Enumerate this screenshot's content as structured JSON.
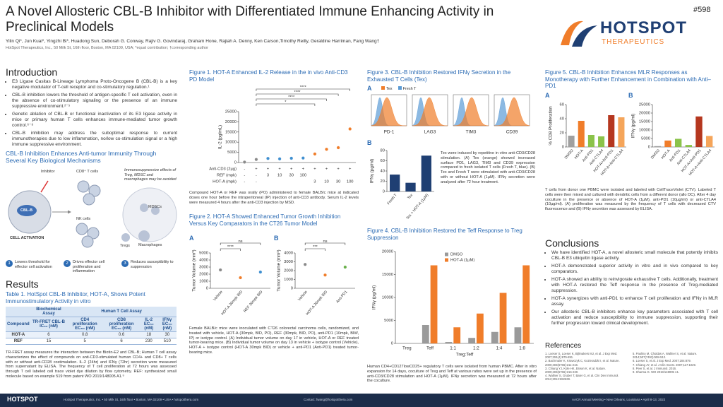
{
  "header": {
    "title": "A Novel Allosteric CBL-B Inhibitor with Differentiated Immune Enhancing Activity in Preclinical Models",
    "authors": "Yilin Qi*, Jun Kuai*, Yingzhi Bi*, Huadong Sun, Deborah G. Conway, Rajiv G. Govindaraj, Graham Hone, Rajiah A. Denny, Ken Carson,Timothy Reilly, Geraldine Harriman, Fang Wang†",
    "affiliation": "HotSpot Therapeutics, Inc., 50 Milk St, 16th floor, Boston, MA 02109, USA; *equal contribution; †corresponding author",
    "poster_number": "#598",
    "logo": {
      "name": "HOTSPOT",
      "sub": "THERAPEUTICS"
    }
  },
  "introduction": {
    "heading": "Introduction",
    "bullets": [
      "E3 Ligase Casitas B-Lineage Lymphoma Proto-Oncogene B (CBL-B) is a key negative modulator of T-cell receptor and co-stimulatory regulation.¹",
      "CBL-B inhibition lowers the threshold of antigen-specific T cell activation, even in the absence of co-stimulatory signaling or the presence of an immune suppressive environment.²⁻⁵",
      "Genetic ablation of CBL-B or functional inactivation of its E3 ligase activity in mice or primary human T cells enhances immune-mediated tumor growth control.⁶⁻⁸",
      "CBL-B inhibition may address the suboptimal response to current immunotherapies due to low inflammation, no/low co-stimulation signal or a high immune suppressive environment."
    ]
  },
  "mechanisms": {
    "heading": "CBL-B Inhibition Enhances Anti-tumor Immunity Through Several Key Biological Mechanisms",
    "labels": [
      "Inhibitor",
      "CD8⁺ T cells",
      "NK cells",
      "Immunosuppressive effects of Treg, MDSC and macrophages may be avoided",
      "MDSCs",
      "Macrophages",
      "Tregs",
      "CBL-B",
      "CELL ACTIVATION"
    ],
    "steps": [
      {
        "number": 1,
        "text": "Lowers threshold for effector cell activation"
      },
      {
        "number": 2,
        "text": "Drives effector cell proliferation and inflammation"
      },
      {
        "number": 3,
        "text": "Reduces susceptibility to suppression"
      }
    ]
  },
  "results": {
    "heading": "Results"
  },
  "table1": {
    "title": "Table 1. HotSpot CBL-B Inhibitor, HOT-A, Shows Potent Immunostimulatory Activity in vitro",
    "group_headers": [
      "Biochemical Assay",
      "Human T Cell Assay"
    ],
    "columns": [
      "Compound",
      "TR-FRET CBL-B IC₅₀ (nM)",
      "CD4 proliferation EC₅₀ (nM)",
      "CD8 proliferation EC₅₀ (nM)",
      "IL-2 EC₅₀ (nM)",
      "IFNγ EC₅₀ (nM)"
    ],
    "rows": [
      [
        "HOT-A",
        6,
        0.8,
        0.6,
        18,
        30
      ],
      [
        "REF",
        15,
        5,
        6,
        230,
        510
      ]
    ],
    "footnote": "TR-FRET assay measures the interaction between the Biotin-E2 and CBL-B; Human T cell assay characterizes the effect of compounds on anti-CD3-stimulated human CD4+ and CD8+ T cells with or without anti-CD28 costimulation. IL-2 (24hr) and IFNγ (72hr) secretion were measured from supernatant by ELISA. The frequency of T cell proliferation at 72 hours was assessed through T cell labeled cell trace violet dye dilution by flow cytometry. REF: synthesized small molecule based on example 519 from patent WO 2019/148005 A1.⁹"
  },
  "fig1": {
    "title": "Figure 1. HOT-A Enhanced IL-2 Release in the in vivo Anti-CD3 PD Model",
    "chart": {
      "type": "dot",
      "ylabel": "IL-2 (pg/mL)",
      "ylim": [
        0,
        25000
      ],
      "yticks": [
        0,
        5000,
        10000,
        15000,
        20000,
        25000
      ],
      "values": [
        200,
        1500,
        2000,
        1800,
        2100,
        2200,
        4200,
        6500,
        7300,
        16500
      ],
      "colors": [
        "#8a8a8a",
        "#8a8a8a",
        "#3f8fd0",
        "#3f8fd0",
        "#3f8fd0",
        "#3f8fd0",
        "#f07d2a",
        "#f07d2a",
        "#f07d2a",
        "#f07d2a"
      ],
      "significance": [
        "****",
        "****",
        "****",
        "*"
      ],
      "row_labels": [
        "Anti-CD3 (2µg)",
        "REF (mpk)",
        "HOT-A (mpk)"
      ],
      "rows": [
        [
          "-",
          "+",
          "+",
          "+",
          "+",
          "+",
          "+",
          "+",
          "+",
          "+"
        ],
        [
          "-",
          "-",
          "3",
          "10",
          "30",
          "100",
          null,
          null,
          null,
          null
        ],
        [
          "-",
          "-",
          null,
          null,
          null,
          null,
          "3",
          "10",
          "30",
          "100"
        ]
      ]
    },
    "caption": "Compound HOT-A or REF was orally (PO) administered to female BALB/c mice at indicated doses one hour before the intraperitoneal (IP) injection of anti-CD3 antibody. Serum IL-2 levels were measured 4 hours after the anti-CD3 injection by MSD."
  },
  "fig2": {
    "title": "Figure 2. HOT-A Showed Enhanced Tumor Growth Inhibition Versus Key Comparators in the CT26 Tumor Model",
    "panels": [
      "A",
      "B"
    ],
    "charts": [
      {
        "type": "dot",
        "ylabel": "Tumor Volume (mm³)",
        "ylim": [
          0,
          5000
        ],
        "yticks": [
          0,
          1000,
          2000,
          3000,
          4000,
          5000
        ],
        "categories": [
          "Vehicle",
          "HOT-A 30mpk BID",
          "REF 30mpk BID"
        ],
        "values": [
          2600,
          1500,
          2300
        ],
        "colors": [
          "#8a8a8a",
          "#f07d2a",
          "#3f8fd0"
        ],
        "significance": [
          "****",
          "ns"
        ]
      },
      {
        "type": "dot",
        "ylabel": "Tumor Volume (mm³)",
        "ylim": [
          0,
          4000
        ],
        "yticks": [
          0,
          1000,
          2000,
          3000,
          4000
        ],
        "categories": [
          "Vehicle",
          "HOT-A 30mpk BID",
          "Anti-PD1"
        ],
        "values": [
          2700,
          1500,
          2400
        ],
        "colors": [
          "#8a8a8a",
          "#f07d2a",
          "#6ab04c"
        ],
        "significance": [
          "***",
          "ns"
        ]
      }
    ],
    "caption": "Female BALB/c mice were inoculated with CT26 colorectal carcinoma cells, randomized, and treated with vehicle, HOT-A (30mpk, BID, PO), REF (30mpk, BID, PO), anti-PD1 (10mpk, BIW, IP) or isotype control. (A) Individual tumor volume on day 17 in vehicle, HOT-A or REF treated tumor-bearing mice. (B) Individual tumor volume on day 13 in vehicle + isotype control (Vehicle), HOT-A + isotype control (HOT-A 30mpk BID) or vehicle + anti-PD1 (Anti-PD1) treated tumor-bearing mice."
  },
  "fig3": {
    "title": "Figure 3. CBL-B Inhibition Restored IFNγ Secretion in the Exhausted T Cells (Tex)",
    "panels": [
      "A",
      "B"
    ],
    "legend": [
      "Tex",
      "Fresh T"
    ],
    "histogram_labels": [
      "PD-1",
      "LAG3",
      "TIM3",
      "CD39"
    ],
    "chart": {
      "type": "bar",
      "ylabel": "IFNγ (pg/ml)",
      "ylim": [
        0,
        80
      ],
      "yticks": [
        0,
        20,
        40,
        60,
        80
      ],
      "categories": [
        "Fresh T",
        "Tex",
        "Tex + HOT-A (1µM)"
      ],
      "values": [
        33,
        17,
        70
      ],
      "colors": [
        "#1f3f73",
        "#1f3f73",
        "#1f3f73"
      ]
    },
    "text": "Tex were induced by repetitive in vitro anti-CD3/CD28 stimulation. (A) Tex (orange) showed increased surface PD1, LAG3, TIM3 and CD39 expression compared to fresh isolated T cells (Fresh T, blue). (B) Tex and Fresh T were stimulated with anti-CD3/CD28 with or without HOT-A (1µM). IFNγ secretion were analyzed after 72 hour treatment."
  },
  "fig4": {
    "title": "Figure 4. CBL-B Inhibition Restored the Teff Response to Treg Suppression",
    "chart": {
      "type": "grouped_bar",
      "ylabel": "IFNγ (pg/ml)",
      "xlabel": "Treg:Teff",
      "ylim": [
        0,
        20000
      ],
      "yticks": [
        0,
        5000,
        10000,
        15000,
        20000
      ],
      "categories": [
        "Treg",
        "Teff",
        "1:1",
        "1:2",
        "1:4",
        "1:8"
      ],
      "series": [
        {
          "name": "DMSO",
          "color": "#9a9a9a",
          "values": [
            0,
            4000,
            300,
            1200,
            2500,
            3500
          ]
        },
        {
          "name": "HOT-A (1µM)",
          "color": "#f07d2a",
          "values": [
            0,
            17000,
            3500,
            6500,
            11000,
            17000
          ]
        }
      ],
      "legend": "top-left"
    },
    "caption": "Human CD4+CD127lowCD25+ regulatory T cells were isolated from human PBMC. After in vitro expansion for 14 days, coculture of Treg and Teff at various ratios were set up in the presence of anti-CD3/CD28 stimulation and HOT-A (1µM). IFNγ secretion was measured at 72 hours after the coculture."
  },
  "fig5": {
    "title": "Figure 5. CBL-B Inhibition Enhances MLR Responses as Monotherapy with Further Enhancement in Combination with Anti–PD1",
    "panels": [
      "A",
      "B"
    ],
    "charts": [
      {
        "type": "bar",
        "ylabel": "% CD8 Proliferation",
        "ylim": [
          0,
          60
        ],
        "yticks": [
          0,
          20,
          40,
          60
        ],
        "categories": [
          "DMSO",
          "HOT-A",
          "Anti-PD1",
          "Anti-CTLA4",
          "HOT-A+Anti-PD1",
          "HOT-A+Anti-CTLA4"
        ],
        "values": [
          16,
          37,
          17,
          15,
          45,
          42
        ],
        "colors": [
          "#a0a0a0",
          "#f07d2a",
          "#8bc34a",
          "#8bc34a",
          "#b5371f",
          "#f5a55a"
        ]
      },
      {
        "type": "bar",
        "ylabel": "IFNγ (pg/ml)",
        "ylim": [
          0,
          25000
        ],
        "yticks": [
          0,
          5000,
          10000,
          15000,
          20000,
          25000
        ],
        "categories": [
          "DMSO",
          "HOT-A",
          "Anti-PD1",
          "Anti-CTLA4",
          "HOT-A+Anti-PD1",
          "HOT-A+Anti-CTLA4"
        ],
        "values": [
          500,
          3800,
          4800,
          1200,
          18000,
          6500
        ],
        "colors": [
          "#a0a0a0",
          "#f07d2a",
          "#8bc34a",
          "#8bc34a",
          "#b5371f",
          "#f5a55a"
        ]
      }
    ],
    "caption": "T cells from donor one PBMC were isolated and labeled with CellTraceViolet (CTV). Labeled T cells were then mixed and cultured with dendritic cells from a different donor (allo DC). After 4 day coculture in the presence or absence of HOT-A (1µM), anti-PD1 (10µg/ml) or anti-CTLA4 (10µg/ml). (A) proliferation was measured by the frequency of T cells with decreased CTV fluorescence and (B) IFNγ secretion was assessed by ELISA."
  },
  "conclusions": {
    "heading": "Conclusions",
    "bullets": [
      "We have identified HOT-A, a novel allosteric small molecule that potently inhibits CBL-B E3 ubiquitin ligase activity.",
      "HOT-A demonstrated superior activity in vitro and in vivo compared to key comparators.",
      "HOT-A showed an ability to reinvigorate exhaustive T cells. Additionally, treatment with HOT-A restored the Teff response in the presence of Treg-mediated suppression.",
      "HOT-A synergizes with anti-PD1 to enhance T cell proliferation and IFNγ in MLR assay.",
      "Our allosteric CBL-B inhibitors enhance key parameters associated with T cell activation and reduce susceptibility to immune suppression, supporting their further progression toward clinical development."
    ]
  },
  "references": {
    "heading": "References",
    "items": [
      "1. Loeser S, Loeser K, Bijlmakers MJ, et al. J Exp Med. 2007;204(4):879-891.",
      "2. Bachmaier K, Krawczyk C, Kozieradzki I, et al. Nature. 2000;403(6766):211-216.",
      "3. Chiang YJ, Kole HK, Brown K, et al. Nature. 2000;403(6766):216-220.",
      "4. Wallner S, Gruber T, Baier G, et al. Clin Dev Immunol. 2012;2012:692639.",
      "5. Paolino M, Choidas A, Wallner S, et al. Nature. 2014;507(7493):508-512.",
      "6. Loeser S, et al. J Exp Med. 2007;204:879.",
      "7. Chiang JY, et al. J Clin Invest. 2007;117:1029.",
      "8. Peer S, et al. J Immunol. 2016.",
      "9. Sharma G. WO 2019/148005 A1."
    ]
  },
  "footer": {
    "left": "HotSpot Therapeutics, Inc. • 50 Milk St, 16th floor • Boston, MA 02109 • USA • hotspotthera.com",
    "center": "Contact: fwang@hotspotthera.com",
    "right": "AACR Annual Meeting • New Orleans, Louisiana • April 8-13, 2022"
  }
}
